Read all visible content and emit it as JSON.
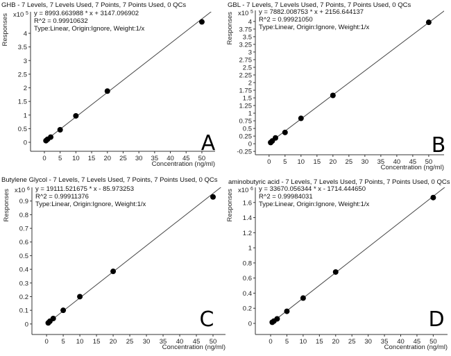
{
  "chart_data": [
    {
      "type": "scatter",
      "panel_letter": "A",
      "title": "GHB - 7 Levels, 7 Levels Used, 7 Points, 7 Points Used, 0 QCs",
      "equation": "y = 8993.663988 * x  + 3147.096902",
      "r_squared": "R^2 = 0.99910632",
      "fit_type": "Type:Linear, Origin:Ignore, Weight:1/x",
      "fit": {
        "slope": 8993.663988,
        "intercept": 3147.096902
      },
      "y_multiplier": "x10",
      "y_exponent": "5",
      "scale": 100000,
      "xlabel": "Concentration (ng/ml)",
      "ylabel": "Responses",
      "xlim": [
        -4.4,
        54.2
      ],
      "ylim": [
        -0.33,
        4.79
      ],
      "xticks": [
        "0",
        "5",
        "10",
        "15",
        "20",
        "25",
        "30",
        "35",
        "40",
        "45",
        "50"
      ],
      "yticks": [
        "0",
        "0.5",
        "1",
        "1.5",
        "2",
        "2.5",
        "3",
        "3.5",
        "4"
      ],
      "x": [
        0.5,
        1,
        2,
        5,
        10,
        20,
        50
      ],
      "y": [
        0.06,
        0.11,
        0.19,
        0.46,
        0.97,
        1.88,
        4.42
      ]
    },
    {
      "type": "scatter",
      "panel_letter": "B",
      "title": "GBL - 7 Levels, 7 Levels Used, 7 Points, 7 Points Used, 0 QCs",
      "equation": "y = 7882.008753 * x  + 2156.644137",
      "r_squared": "R^2 = 0.99921050",
      "fit_type": "Type:Linear, Origin:Ignore, Weight:1/x",
      "fit": {
        "slope": 7882.008753,
        "intercept": 2156.644137
      },
      "y_multiplier": "x10",
      "y_exponent": "5",
      "scale": 100000,
      "xlabel": "Concentration (ng/ml)",
      "ylabel": "Responses",
      "xlim": [
        -4.3,
        54.8
      ],
      "ylim": [
        -0.36,
        4.36
      ],
      "xticks": [
        "0",
        "5",
        "10",
        "15",
        "20",
        "25",
        "30",
        "35",
        "40",
        "45",
        "50"
      ],
      "yticks": [
        "-0.25",
        "0",
        "0.25",
        "0.5",
        "0.75",
        "1",
        "1.25",
        "1.5",
        "1.75",
        "2",
        "2.25",
        "2.5",
        "2.75",
        "3",
        "3.25",
        "3.5",
        "3.75",
        "4"
      ],
      "x": [
        0.5,
        1,
        2,
        5,
        10,
        20,
        50
      ],
      "y": [
        0.04,
        0.09,
        0.19,
        0.37,
        0.83,
        1.58,
        3.97
      ]
    },
    {
      "type": "scatter",
      "panel_letter": "C",
      "title": "Butylene Glycol - 7 Levels, 7 Levels Used, 7 Points, 7 Points Used, 0 QCs",
      "equation": "y = 19111.521675 * x  - 85.973253",
      "r_squared": "R^2 = 0.99911376",
      "fit_type": "Type:Linear, Origin:Ignore, Weight:1/x",
      "fit": {
        "slope": 19111.521675,
        "intercept": -85.973253
      },
      "y_multiplier": "x10",
      "y_exponent": "6",
      "scale": 1000000,
      "xlabel": "Concentration (ng/ml)",
      "ylabel": "Responses",
      "xlim": [
        -4.4,
        53.75
      ],
      "ylim": [
        -0.077,
        1.0
      ],
      "xticks": [
        "0",
        "5",
        "10",
        "15",
        "20",
        "25",
        "30",
        "35",
        "40",
        "45",
        "50"
      ],
      "yticks": [
        "0",
        "0.1",
        "0.2",
        "0.3",
        "0.4",
        "0.5",
        "0.6",
        "0.7",
        "0.8",
        "0.9"
      ],
      "x": [
        0.5,
        1,
        2,
        5,
        10,
        20,
        50
      ],
      "y": [
        0.008,
        0.02,
        0.04,
        0.1,
        0.2,
        0.385,
        0.93
      ]
    },
    {
      "type": "scatter",
      "panel_letter": "D",
      "title": "aminobutyric acid - 7 Levels, 7 Levels Used, 7 Points, 7 Points Used, 0 QCs",
      "equation": "y = 33670.056344 * x  - 1714.444650",
      "r_squared": "R^2 = 0.99984031",
      "fit_type": "Type:Linear, Origin:Ignore, Weight:1/x",
      "fit": {
        "slope": 33670.056344,
        "intercept": -1714.44465
      },
      "y_multiplier": "x10",
      "y_exponent": "6",
      "scale": 1000000,
      "xlabel": "Concentration (ng/ml)",
      "ylabel": "Responses",
      "xlim": [
        -4.7,
        54.4
      ],
      "ylim": [
        -0.147,
        1.8
      ],
      "xticks": [
        "0",
        "5",
        "10",
        "15",
        "20",
        "25",
        "30",
        "35",
        "40",
        "45",
        "50"
      ],
      "yticks": [
        "0",
        "0.2",
        "0.4",
        "0.6",
        "0.8",
        "1",
        "1.2",
        "1.4",
        "1.6"
      ],
      "x": [
        0.5,
        1,
        2,
        5,
        10,
        20,
        50
      ],
      "y": [
        0.015,
        0.03,
        0.06,
        0.16,
        0.335,
        0.68,
        1.665
      ]
    }
  ]
}
